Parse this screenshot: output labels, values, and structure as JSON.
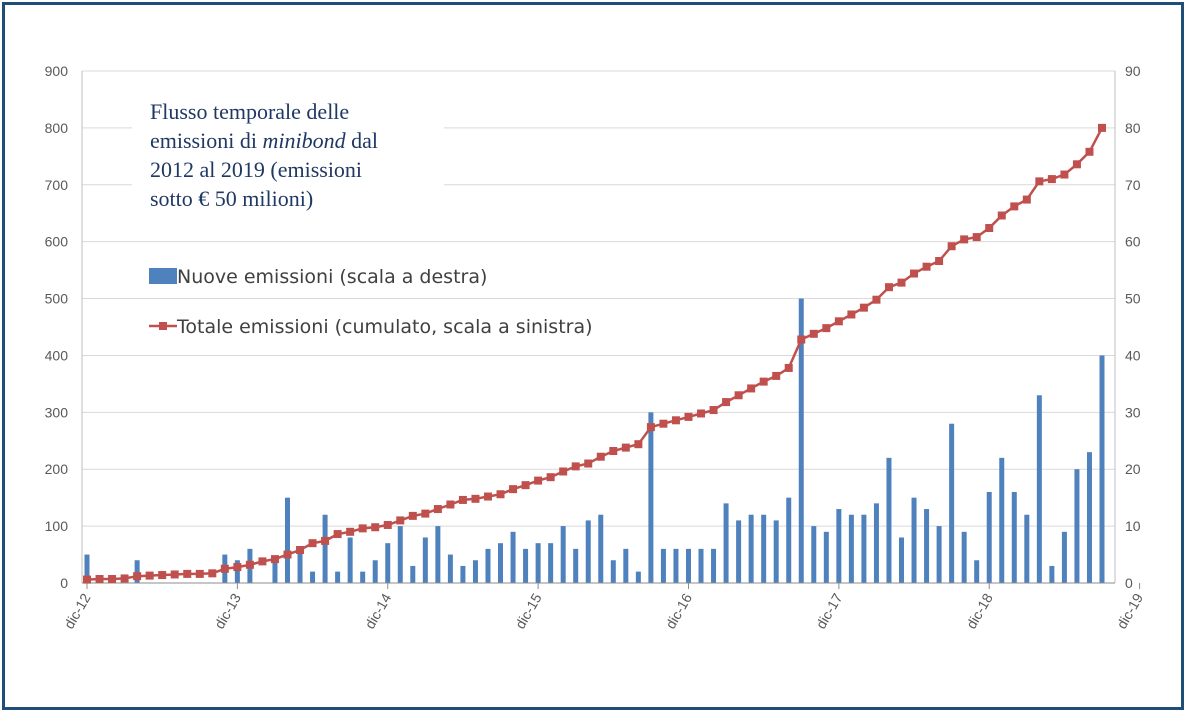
{
  "chart_data": {
    "type": "bar+line",
    "title_lines": [
      [
        "Flusso temporale delle"
      ],
      [
        "emissioni di ",
        "minibond",
        " dal"
      ],
      [
        "2012 al 2019 (emissioni"
      ],
      [
        "sotto € 50 milioni)"
      ]
    ],
    "x_tick_labels": [
      "dic-12",
      "dic-13",
      "dic-14",
      "dic-15",
      "dic-16",
      "dic-17",
      "dic-18",
      "dic-19"
    ],
    "left_axis": {
      "ylim": [
        0,
        900
      ],
      "ticks": [
        0,
        100,
        200,
        300,
        400,
        500,
        600,
        700,
        800,
        900
      ]
    },
    "right_axis": {
      "ylim": [
        0,
        90
      ],
      "ticks": [
        0,
        10,
        20,
        30,
        40,
        50,
        60,
        70,
        80,
        90
      ]
    },
    "grid": true,
    "legend_position": "upper-left",
    "series": [
      {
        "name": "Nuove emissioni (scala a destra)",
        "type": "bar",
        "axis": "right",
        "color": "#4f81bd",
        "values": [
          5,
          0,
          0,
          0,
          4,
          0,
          0,
          0,
          0,
          0,
          0,
          5,
          4,
          6,
          0,
          4,
          15,
          6,
          2,
          12,
          2,
          8,
          2,
          4,
          7,
          10,
          3,
          8,
          10,
          5,
          3,
          4,
          6,
          7,
          9,
          6,
          7,
          7,
          10,
          6,
          11,
          12,
          4,
          6,
          2,
          30,
          6,
          6,
          6,
          6,
          6,
          14,
          11,
          12,
          12,
          11,
          15,
          50,
          10,
          9,
          13,
          12,
          12,
          14,
          22,
          8,
          15,
          13,
          10,
          28,
          9,
          4,
          16,
          22,
          16,
          12,
          33,
          3,
          9,
          20,
          23,
          40
        ]
      },
      {
        "name": "Totale emissioni (cumulato, scala a sinistra)",
        "type": "line",
        "axis": "left",
        "color": "#c0504d",
        "values": [
          6,
          7,
          7,
          8,
          12,
          13,
          14,
          15,
          16,
          16,
          17,
          25,
          28,
          32,
          38,
          42,
          50,
          58,
          70,
          74,
          86,
          90,
          96,
          98,
          102,
          110,
          118,
          122,
          130,
          138,
          146,
          148,
          152,
          156,
          165,
          172,
          180,
          186,
          196,
          205,
          210,
          222,
          232,
          238,
          244,
          274,
          280,
          286,
          292,
          298,
          304,
          318,
          330,
          342,
          354,
          364,
          378,
          428,
          438,
          448,
          460,
          472,
          484,
          498,
          520,
          528,
          544,
          556,
          566,
          592,
          604,
          608,
          624,
          646,
          662,
          674,
          706,
          710,
          718,
          736,
          758,
          800
        ]
      }
    ]
  }
}
